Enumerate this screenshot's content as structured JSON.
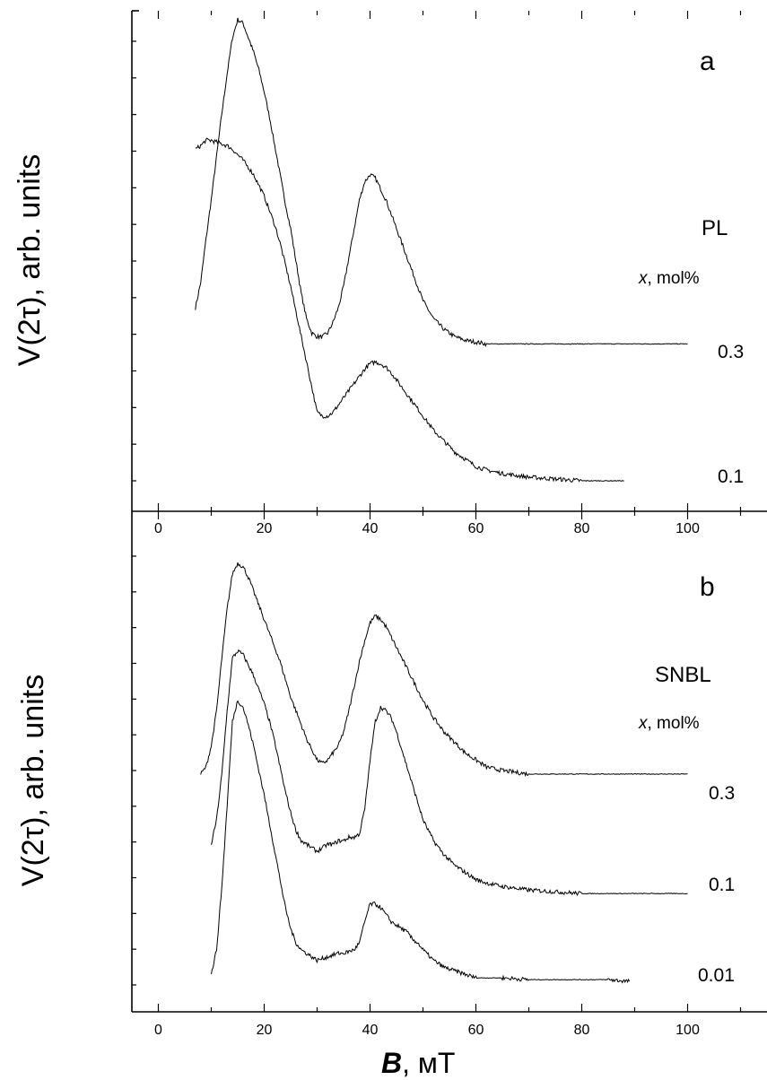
{
  "chart_data": [
    {
      "type": "line",
      "panel_label": "a",
      "sample": "PL",
      "legend_title_var": "x",
      "legend_title_unit": ", mol%",
      "ylabel": "V(2τ), arb. units",
      "xlim": [
        -5,
        115
      ],
      "ylim": [
        0,
        1.22
      ],
      "x_ticks": [
        "0",
        "20",
        "40",
        "60",
        "80",
        "100"
      ],
      "series": [
        {
          "name": "0.3",
          "x": [
            7,
            8,
            9,
            10,
            11,
            12,
            13,
            14,
            15,
            16,
            17,
            18,
            19,
            20,
            21,
            22,
            23,
            24,
            25,
            26,
            27,
            28,
            29,
            30,
            31,
            32,
            33,
            34,
            35,
            36,
            37,
            38,
            39,
            40,
            41,
            42,
            43,
            44,
            45,
            46,
            47,
            48,
            49,
            50,
            52,
            54,
            56,
            58,
            60,
            62,
            65,
            70,
            80,
            90,
            100
          ],
          "y": [
            0.48,
            0.55,
            0.67,
            0.78,
            0.9,
            1.02,
            1.13,
            1.23,
            1.28,
            1.27,
            1.23,
            1.19,
            1.14,
            1.08,
            1.01,
            0.93,
            0.85,
            0.77,
            0.7,
            0.61,
            0.52,
            0.45,
            0.41,
            0.4,
            0.4,
            0.41,
            0.44,
            0.48,
            0.54,
            0.62,
            0.7,
            0.78,
            0.83,
            0.85,
            0.84,
            0.81,
            0.78,
            0.74,
            0.7,
            0.66,
            0.62,
            0.58,
            0.54,
            0.5,
            0.45,
            0.42,
            0.4,
            0.39,
            0.385,
            0.38,
            0.38,
            0.38,
            0.38,
            0.38,
            0.38
          ]
        },
        {
          "name": "0.1",
          "x": [
            7,
            8,
            9,
            10,
            11,
            12,
            13,
            14,
            15,
            16,
            17,
            18,
            19,
            20,
            21,
            22,
            23,
            24,
            25,
            26,
            27,
            28,
            29,
            30,
            31,
            32,
            33,
            34,
            35,
            36,
            37,
            38,
            39,
            40,
            41,
            42,
            43,
            44,
            45,
            46,
            47,
            48,
            49,
            50,
            52,
            54,
            56,
            58,
            60,
            62,
            65,
            70,
            75,
            80,
            88
          ],
          "y": [
            0.92,
            0.93,
            0.945,
            0.945,
            0.94,
            0.935,
            0.93,
            0.92,
            0.905,
            0.89,
            0.87,
            0.85,
            0.82,
            0.79,
            0.75,
            0.71,
            0.66,
            0.6,
            0.54,
            0.47,
            0.4,
            0.33,
            0.26,
            0.19,
            0.18,
            0.18,
            0.19,
            0.21,
            0.23,
            0.25,
            0.27,
            0.29,
            0.31,
            0.325,
            0.33,
            0.325,
            0.315,
            0.3,
            0.28,
            0.26,
            0.24,
            0.22,
            0.2,
            0.18,
            0.14,
            0.11,
            0.08,
            0.06,
            0.04,
            0.03,
            0.02,
            0.01,
            0.005,
            0.0,
            0.0
          ]
        }
      ],
      "right_labels": [
        "0.3",
        "0.1"
      ]
    },
    {
      "type": "line",
      "panel_label": "b",
      "sample": "SNBL",
      "legend_title_var": "x",
      "legend_title_unit": ", mol%",
      "ylabel": "V(2τ), arb. units",
      "xlabel_var": "B",
      "xlabel_unit": ", мТ",
      "xlim": [
        -5,
        115
      ],
      "ylim": [
        0,
        1.22
      ],
      "x_ticks": [
        "0",
        "20",
        "40",
        "60",
        "80",
        "100"
      ],
      "series": [
        {
          "name": "0.3",
          "x": [
            8,
            9,
            10,
            11,
            12,
            13,
            14,
            15,
            16,
            17,
            18,
            19,
            20,
            21,
            22,
            23,
            24,
            25,
            26,
            27,
            28,
            29,
            30,
            31,
            32,
            33,
            34,
            35,
            36,
            37,
            38,
            39,
            40,
            41,
            42,
            43,
            44,
            45,
            46,
            47,
            48,
            49,
            50,
            52,
            54,
            56,
            58,
            60,
            62,
            65,
            70,
            80,
            90,
            100
          ],
          "y": [
            0.6,
            0.62,
            0.68,
            0.78,
            0.93,
            1.07,
            1.17,
            1.2,
            1.19,
            1.16,
            1.12,
            1.08,
            1.04,
            1.0,
            0.96,
            0.92,
            0.87,
            0.82,
            0.78,
            0.74,
            0.7,
            0.67,
            0.64,
            0.63,
            0.64,
            0.66,
            0.68,
            0.72,
            0.78,
            0.85,
            0.92,
            0.98,
            1.03,
            1.05,
            1.04,
            1.02,
            0.99,
            0.96,
            0.93,
            0.9,
            0.87,
            0.84,
            0.81,
            0.76,
            0.72,
            0.69,
            0.66,
            0.64,
            0.62,
            0.61,
            0.6,
            0.6,
            0.6,
            0.6
          ]
        },
        {
          "name": "0.1",
          "x": [
            10,
            11,
            12,
            13,
            14,
            15,
            16,
            17,
            18,
            19,
            20,
            21,
            22,
            23,
            24,
            25,
            26,
            27,
            28,
            29,
            30,
            31,
            32,
            33,
            34,
            35,
            36,
            37,
            38,
            39,
            40,
            41,
            42,
            43,
            44,
            45,
            46,
            47,
            48,
            49,
            50,
            52,
            54,
            56,
            58,
            60,
            62,
            65,
            70,
            75,
            80,
            85,
            90,
            95,
            100
          ],
          "y": [
            0.4,
            0.47,
            0.6,
            0.78,
            0.93,
            0.95,
            0.94,
            0.91,
            0.88,
            0.84,
            0.8,
            0.75,
            0.69,
            0.62,
            0.55,
            0.49,
            0.44,
            0.41,
            0.4,
            0.39,
            0.38,
            0.39,
            0.4,
            0.4,
            0.41,
            0.41,
            0.42,
            0.42,
            0.43,
            0.5,
            0.64,
            0.75,
            0.79,
            0.78,
            0.76,
            0.72,
            0.67,
            0.62,
            0.57,
            0.52,
            0.47,
            0.41,
            0.37,
            0.34,
            0.32,
            0.3,
            0.29,
            0.28,
            0.27,
            0.265,
            0.26,
            0.26,
            0.26,
            0.26,
            0.26
          ]
        },
        {
          "name": "0.01",
          "x": [
            10,
            11,
            12,
            13,
            14,
            15,
            16,
            17,
            18,
            19,
            20,
            21,
            22,
            23,
            24,
            25,
            26,
            27,
            28,
            29,
            30,
            31,
            32,
            33,
            34,
            35,
            36,
            37,
            38,
            39,
            40,
            41,
            42,
            43,
            44,
            45,
            46,
            47,
            48,
            49,
            50,
            52,
            54,
            56,
            58,
            60,
            62,
            65,
            70,
            75,
            80,
            85,
            89
          ],
          "y": [
            0.03,
            0.1,
            0.28,
            0.51,
            0.75,
            0.81,
            0.79,
            0.74,
            0.68,
            0.61,
            0.54,
            0.46,
            0.38,
            0.3,
            0.22,
            0.16,
            0.12,
            0.1,
            0.09,
            0.08,
            0.07,
            0.075,
            0.08,
            0.085,
            0.09,
            0.09,
            0.095,
            0.1,
            0.12,
            0.18,
            0.23,
            0.23,
            0.22,
            0.2,
            0.18,
            0.17,
            0.16,
            0.15,
            0.13,
            0.12,
            0.1,
            0.07,
            0.05,
            0.04,
            0.03,
            0.02,
            0.02,
            0.02,
            0.015,
            0.015,
            0.015,
            0.015,
            0.01
          ]
        }
      ],
      "right_labels": [
        "0.3",
        "0.1",
        "0.01"
      ]
    }
  ]
}
